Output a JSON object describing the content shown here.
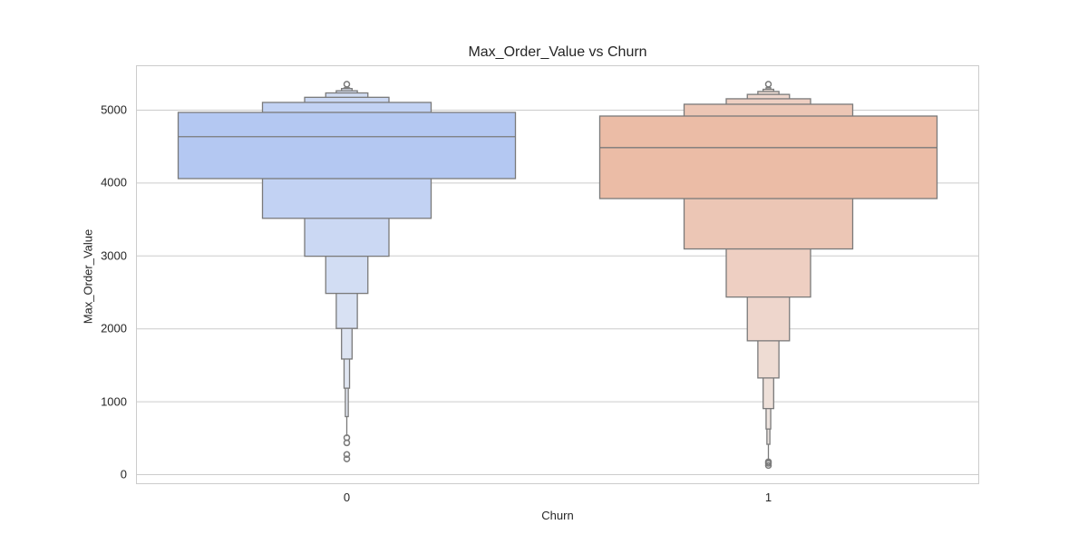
{
  "chart_data": {
    "type": "boxen",
    "title": "Max_Order_Value vs Churn",
    "xlabel": "Churn",
    "ylabel": "Max_Order_Value",
    "categories": [
      "0",
      "1"
    ],
    "ylim": [
      -130,
      5600
    ],
    "yticks": [
      0,
      1000,
      2000,
      3000,
      4000,
      5000
    ],
    "grid": true,
    "legend": null,
    "series": [
      {
        "name": "0",
        "color": "#b4c8f2",
        "median": 4630,
        "boxes": [
          {
            "low": 4055,
            "high": 4963,
            "halfwidth": 0.8,
            "fill": "#b4c8f2"
          },
          {
            "low": 3510,
            "high": 5100,
            "halfwidth": 0.4,
            "fill": "#c2d2f3"
          },
          {
            "low": 2990,
            "high": 5170,
            "halfwidth": 0.2,
            "fill": "#cbd8f3"
          },
          {
            "low": 2480,
            "high": 5230,
            "halfwidth": 0.1,
            "fill": "#d2ddf3"
          },
          {
            "low": 2000,
            "high": 5260,
            "halfwidth": 0.05,
            "fill": "#d8e1f3"
          },
          {
            "low": 1580,
            "high": 5290,
            "halfwidth": 0.025,
            "fill": "#dde4f2"
          },
          {
            "low": 1180,
            "high": 5300,
            "halfwidth": 0.013,
            "fill": "#e0e6f2"
          },
          {
            "low": 790,
            "high": 5310,
            "halfwidth": 0.007,
            "fill": "#e2e7f1"
          }
        ],
        "whisker_low": 520,
        "outliers": [
          500,
          430,
          270,
          210,
          5350
        ]
      },
      {
        "name": "1",
        "color": "#ebbca6",
        "median": 4480,
        "boxes": [
          {
            "low": 3781,
            "high": 4913,
            "halfwidth": 0.8,
            "fill": "#ebbca6"
          },
          {
            "low": 3090,
            "high": 5075,
            "halfwidth": 0.4,
            "fill": "#ecc6b5"
          },
          {
            "low": 2430,
            "high": 5150,
            "halfwidth": 0.2,
            "fill": "#eecfc2"
          },
          {
            "low": 1830,
            "high": 5210,
            "halfwidth": 0.1,
            "fill": "#eed6cc"
          },
          {
            "low": 1320,
            "high": 5250,
            "halfwidth": 0.05,
            "fill": "#eedcd3"
          },
          {
            "low": 900,
            "high": 5280,
            "halfwidth": 0.025,
            "fill": "#eee0d9"
          },
          {
            "low": 620,
            "high": 5300,
            "halfwidth": 0.011,
            "fill": "#ede3de"
          },
          {
            "low": 410,
            "high": 5310,
            "halfwidth": 0.007,
            "fill": "#ece5e1"
          }
        ],
        "whisker_low": 190,
        "outliers": [
          170,
          150,
          120,
          5350
        ]
      }
    ]
  },
  "colors": {
    "grid": "#cccccc",
    "frame": "#cccccc",
    "edge": "#7a7a7a"
  }
}
